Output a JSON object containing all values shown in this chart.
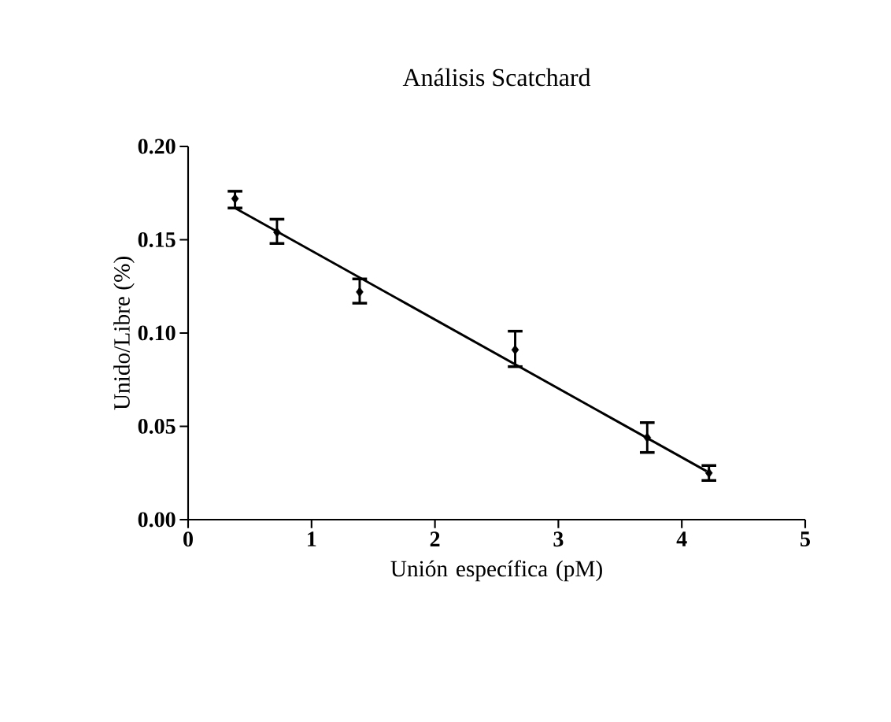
{
  "chart_data": {
    "type": "scatter",
    "title": "Análisis Scatchard",
    "xlabel": "Unión específica (pM)",
    "ylabel": "Unido/Libre (%)",
    "xlim": [
      0,
      5
    ],
    "ylim": [
      0,
      0.2
    ],
    "xticks": [
      0,
      1,
      2,
      3,
      4,
      5
    ],
    "yticks": [
      {
        "value": 0,
        "label": "0.00"
      },
      {
        "value": 0.05,
        "label": "0.05"
      },
      {
        "value": 0.1,
        "label": "0.10"
      },
      {
        "value": 0.15,
        "label": "0.15"
      },
      {
        "value": 0.2,
        "label": "0.20"
      }
    ],
    "grid": false,
    "marker": "diamond",
    "series": [
      {
        "color": "#000000",
        "x": [
          0.38,
          0.72,
          1.39,
          2.65,
          3.72,
          4.22
        ],
        "values": [
          0.172,
          0.154,
          0.122,
          0.091,
          0.044,
          0.025
        ],
        "errors": [
          [
            0.167,
            0.176
          ],
          [
            0.148,
            0.161
          ],
          [
            0.116,
            0.129
          ],
          [
            0.082,
            0.101
          ],
          [
            0.036,
            0.052
          ],
          [
            0.021,
            0.029
          ]
        ]
      },
      {
        "type": "line",
        "color": "#000000",
        "x": [
          0.38,
          4.2
        ],
        "values": [
          0.167,
          0.026
        ],
        "marker": "none"
      }
    ]
  }
}
